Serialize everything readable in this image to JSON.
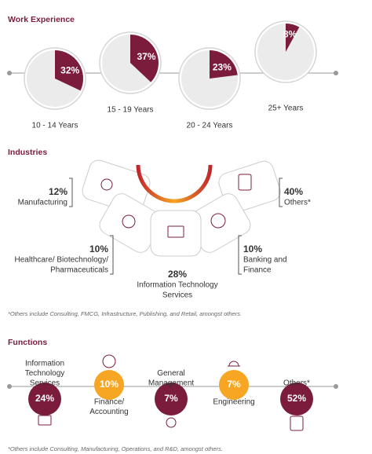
{
  "work_experience": {
    "title": "Work Experience",
    "categories": [
      "10 - 14 Years",
      "15 - 19 Years",
      "20 - 24 Years",
      "25+ Years"
    ],
    "values": [
      32,
      37,
      23,
      8
    ],
    "value_labels": [
      "32%",
      "37%",
      "23%",
      "8%"
    ]
  },
  "industries": {
    "title": "Industries",
    "categories": [
      [
        "Manufacturing"
      ],
      [
        "Others*"
      ],
      [
        "Healthcare/ Biotechnology/",
        "Pharmaceuticals"
      ],
      [
        "Banking and",
        "Finance"
      ],
      [
        "Information Technology",
        "Services"
      ]
    ],
    "values": [
      12,
      40,
      10,
      10,
      28
    ],
    "value_labels": [
      "12%",
      "40%",
      "10%",
      "10%",
      "28%"
    ],
    "note": "*Others include Consulting, FMCG, Infrastructure, Publishing, and Retail, amongst others."
  },
  "functions": {
    "title": "Functions",
    "categories": [
      [
        "Information",
        "Technology",
        "Services"
      ],
      [
        "Finance/",
        "Accounting"
      ],
      [
        "General",
        "Management"
      ],
      [
        "Engineering"
      ],
      [
        "Others*"
      ]
    ],
    "values": [
      24,
      10,
      7,
      7,
      52
    ],
    "value_labels": [
      "24%",
      "10%",
      "7%",
      "7%",
      "52%"
    ],
    "note": "*Others include Consulting, Manufacturing, Operations, and R&D, amongst others."
  }
}
